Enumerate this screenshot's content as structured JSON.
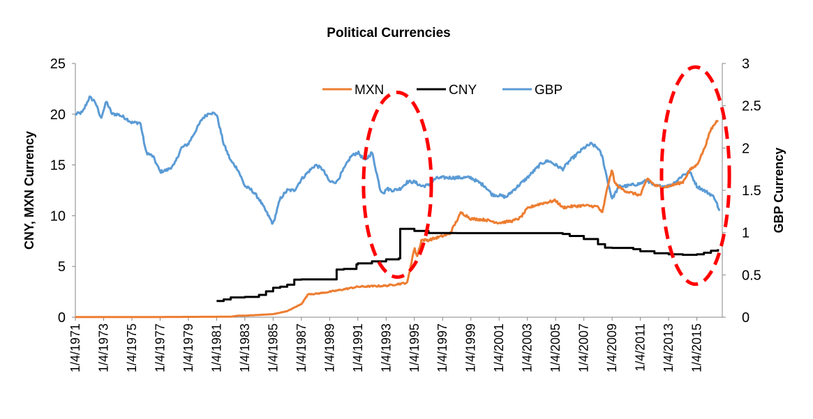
{
  "chart_data": {
    "type": "line",
    "title": "Political Currencies",
    "ylabel_left": "CNY, MXN Currency",
    "ylabel_right": "GBP Currency",
    "xlabel": "",
    "ylim_left": [
      0,
      25
    ],
    "ylim_right": [
      0,
      3
    ],
    "yticks_left": [
      0,
      5,
      10,
      15,
      20,
      25
    ],
    "yticks_right": [
      0,
      0.5,
      1,
      1.5,
      2,
      2.5,
      3
    ],
    "xlim": [
      1971.0,
      2016.8
    ],
    "xtick_labels": [
      "1/4/1971",
      "1/4/1973",
      "1/4/1975",
      "1/4/1977",
      "1/4/1979",
      "1/4/1981",
      "1/4/1983",
      "1/4/1985",
      "1/4/1987",
      "1/4/1989",
      "1/4/1991",
      "1/4/1993",
      "1/4/1995",
      "1/4/1997",
      "1/4/1999",
      "1/4/2001",
      "1/4/2003",
      "1/4/2005",
      "1/4/2007",
      "1/4/2009",
      "1/4/2011",
      "1/4/2013",
      "1/4/2015"
    ],
    "xtick_years": [
      1971,
      1973,
      1975,
      1977,
      1979,
      1981,
      1983,
      1985,
      1987,
      1989,
      1991,
      1993,
      1995,
      1997,
      1999,
      2001,
      2003,
      2005,
      2007,
      2009,
      2011,
      2013,
      2015
    ],
    "legend_position": "top-center",
    "series": [
      {
        "name": "MXN",
        "axis": "left",
        "color": "#ED7D31",
        "x": [
          1971,
          1976.5,
          1977,
          1982,
          1982.5,
          1983,
          1985,
          1986,
          1987,
          1987.5,
          1987.9,
          1988,
          1989,
          1991,
          1993,
          1994.5,
          1994.8,
          1995.0,
          1995.2,
          1995.5,
          1996,
          1997,
          1997.5,
          1998,
          1998.3,
          1998.7,
          1999,
          2000,
          2001,
          2002,
          2002.5,
          2003,
          2003.5,
          2004,
          2005,
          2005.5,
          2006,
          2007,
          2008,
          2008.3,
          2008.7,
          2009,
          2009.2,
          2009.5,
          2010,
          2011,
          2011.5,
          2012,
          2012.5,
          2013,
          2014,
          2014.5,
          2015,
          2015.5,
          2016,
          2016.5
        ],
        "y": [
          0.0125,
          0.0125,
          0.0227,
          0.05,
          0.15,
          0.15,
          0.3,
          0.6,
          1.3,
          2.3,
          2.3,
          2.3,
          2.5,
          3.0,
          3.1,
          3.4,
          5.5,
          6.8,
          6.0,
          7.6,
          7.6,
          8.0,
          8.2,
          9.5,
          10.3,
          10.0,
          9.7,
          9.6,
          9.3,
          9.5,
          9.8,
          10.7,
          11.0,
          11.2,
          11.5,
          10.8,
          10.9,
          11.0,
          10.9,
          10.2,
          13.0,
          14.5,
          13.2,
          12.8,
          12.4,
          12.0,
          13.7,
          13.0,
          12.8,
          12.9,
          13.3,
          14.5,
          15.0,
          16.5,
          18.5,
          19.5
        ]
      },
      {
        "name": "CNY",
        "axis": "left",
        "color": "#000000",
        "x": [
          1981.0,
          1981.5,
          1982,
          1983,
          1984,
          1984.5,
          1985,
          1985.5,
          1986,
          1986.5,
          1987,
          1989,
          1989.5,
          1990,
          1990.9,
          1991,
          1992,
          1993,
          1993.9,
          1994,
          1995,
          1996,
          1998,
          2000,
          2002,
          2004,
          2005.5,
          2006,
          2007,
          2008,
          2008.5,
          2009,
          2010,
          2010.5,
          2011,
          2012,
          2013,
          2014,
          2015,
          2015.5,
          2016,
          2016.5
        ],
        "y": [
          1.6,
          1.75,
          1.95,
          2.0,
          2.2,
          2.55,
          2.9,
          3.0,
          3.2,
          3.7,
          3.72,
          3.72,
          4.7,
          4.75,
          5.2,
          5.3,
          5.5,
          5.7,
          5.8,
          8.7,
          8.5,
          8.3,
          8.28,
          8.28,
          8.28,
          8.28,
          8.2,
          8.0,
          7.7,
          7.2,
          6.85,
          6.83,
          6.83,
          6.7,
          6.5,
          6.3,
          6.2,
          6.15,
          6.2,
          6.35,
          6.55,
          6.7
        ]
      },
      {
        "name": "GBP",
        "axis": "right",
        "color": "#5B9BD5",
        "x": [
          1971,
          1971.5,
          1972,
          1972.4,
          1972.8,
          1973.2,
          1973.6,
          1974,
          1974.6,
          1975,
          1975.6,
          1976,
          1976.5,
          1977,
          1977.5,
          1978,
          1978.5,
          1979,
          1979.5,
          1980,
          1980.5,
          1981,
          1981.5,
          1982,
          1982.5,
          1983,
          1983.5,
          1984,
          1984.5,
          1985,
          1985.5,
          1986,
          1986.5,
          1987,
          1987.5,
          1988,
          1988.5,
          1989,
          1989.5,
          1990,
          1990.5,
          1991,
          1991.5,
          1992,
          1992.6,
          1992.9,
          1993,
          1993.5,
          1994,
          1994.5,
          1995,
          1995.5,
          1996,
          1996.5,
          1997,
          1998,
          1999,
          2000,
          2000.5,
          2001,
          2001.5,
          2002,
          2003,
          2004,
          2004.5,
          2005,
          2005.5,
          2006,
          2007,
          2007.5,
          2008,
          2008.3,
          2008.7,
          2009,
          2009.5,
          2010,
          2011,
          2011.5,
          2012,
          2013,
          2013.5,
          2014,
          2014.5,
          2015,
          2015.5,
          2016,
          2016.3,
          2016.6
        ],
        "y": [
          2.4,
          2.42,
          2.6,
          2.55,
          2.35,
          2.55,
          2.4,
          2.4,
          2.35,
          2.3,
          2.3,
          1.95,
          1.9,
          1.72,
          1.74,
          1.8,
          2.0,
          2.05,
          2.2,
          2.35,
          2.42,
          2.4,
          2.05,
          1.85,
          1.75,
          1.55,
          1.5,
          1.4,
          1.25,
          1.1,
          1.4,
          1.5,
          1.5,
          1.63,
          1.72,
          1.8,
          1.75,
          1.6,
          1.6,
          1.75,
          1.9,
          1.95,
          1.85,
          1.95,
          1.5,
          1.47,
          1.52,
          1.5,
          1.52,
          1.6,
          1.6,
          1.55,
          1.56,
          1.64,
          1.65,
          1.65,
          1.65,
          1.55,
          1.45,
          1.44,
          1.42,
          1.5,
          1.65,
          1.82,
          1.85,
          1.8,
          1.75,
          1.85,
          2.0,
          2.05,
          2.0,
          1.9,
          1.6,
          1.4,
          1.55,
          1.55,
          1.58,
          1.62,
          1.55,
          1.55,
          1.6,
          1.68,
          1.72,
          1.55,
          1.5,
          1.45,
          1.4,
          1.25
        ]
      }
    ],
    "annotations": [
      {
        "type": "dashed-ellipse",
        "color": "#FF0000",
        "x_center": 1993.8,
        "y_center_left": 13.05,
        "x_radius": 2.4,
        "y_radius_left": 9.1
      },
      {
        "type": "dashed-ellipse",
        "color": "#FF0000",
        "x_center": 2014.9,
        "y_center_left": 13.95,
        "x_radius": 2.4,
        "y_radius_left": 10.7
      }
    ]
  }
}
